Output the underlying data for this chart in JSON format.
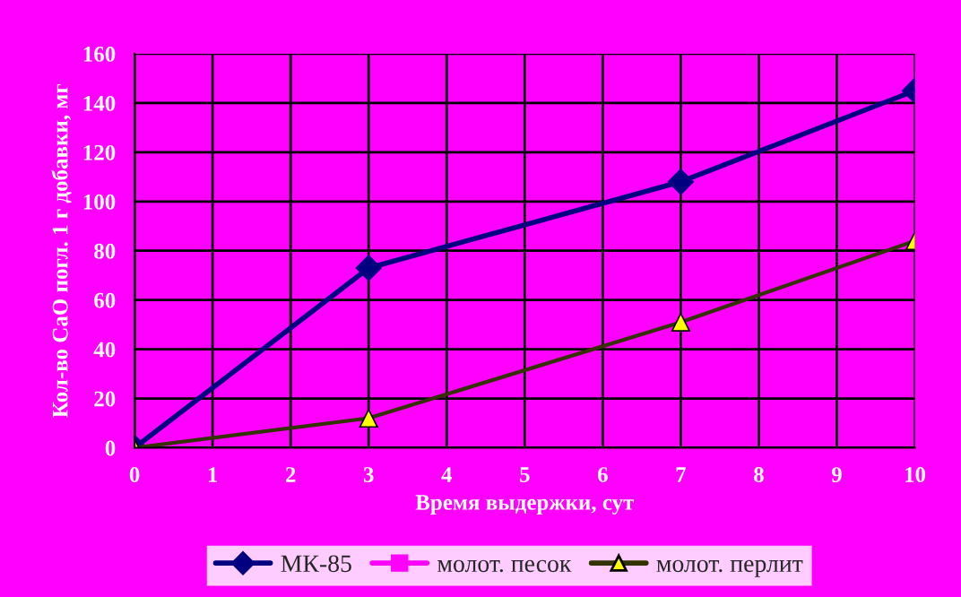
{
  "chart_data": {
    "type": "line",
    "xlabel": "Время выдержки, сут",
    "ylabel": "Кол-во CaO погл. 1 г добавки, мг",
    "xlim": [
      0,
      10
    ],
    "xticks": [
      0,
      1,
      2,
      3,
      4,
      5,
      6,
      7,
      8,
      9,
      10
    ],
    "ylim": [
      0,
      160
    ],
    "yticks": [
      0,
      20,
      40,
      60,
      80,
      100,
      120,
      140,
      160
    ],
    "grid": true,
    "legend": "bottom",
    "line_style": "solid",
    "series": [
      {
        "name": "МК-85",
        "color": "#000080",
        "marker": "diamond",
        "x": [
          0,
          3,
          7,
          10
        ],
        "values": [
          0,
          73,
          108,
          145
        ]
      },
      {
        "name": "молот. песок",
        "color": "#ff00ff",
        "marker": "square"
      },
      {
        "name": "молот. перлит",
        "color": "#333300",
        "marker": "triangle",
        "x": [
          0,
          3,
          7,
          10
        ],
        "values": [
          0,
          12,
          51,
          84
        ]
      }
    ]
  }
}
